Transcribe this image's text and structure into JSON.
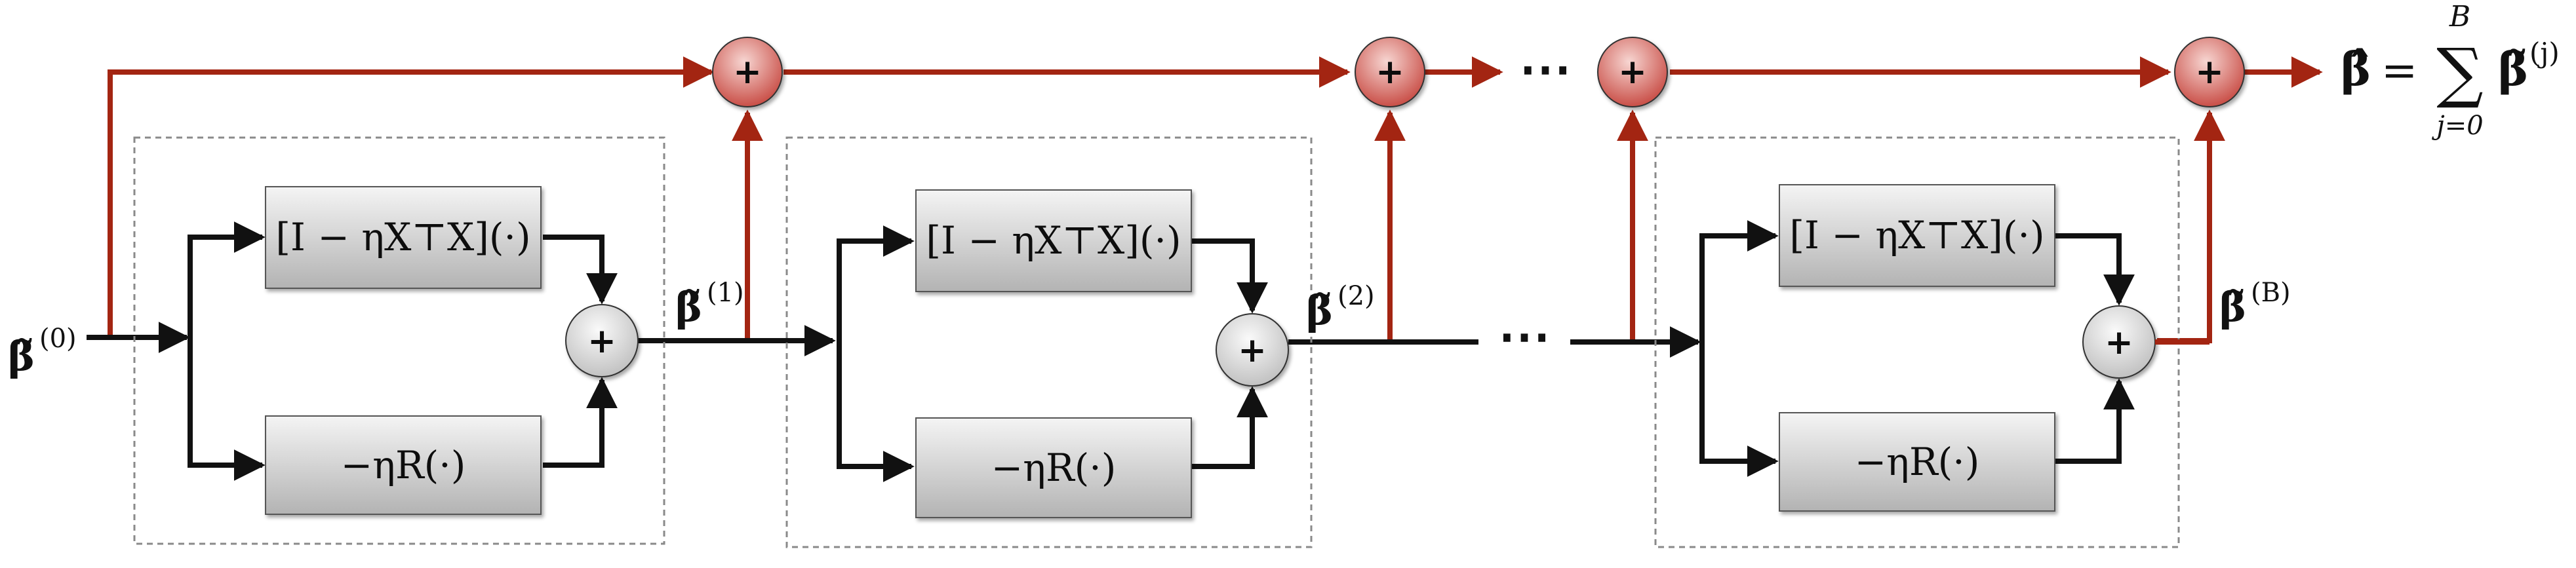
{
  "colors": {
    "signal": "#111111",
    "accumulator": "#a32512",
    "box_fill_top": "#f2f2f2",
    "box_fill_bottom": "#b5b5b5",
    "adder_fill": "#dcdcdc",
    "accumulator_adder_fill": "#c84a4a",
    "dashed_border": "#8a8a8a"
  },
  "input_label": {
    "base": "β̃",
    "superscript": "(0)"
  },
  "blocks": [
    {
      "top_box": "[I − ηX⊤X](·)",
      "bottom_box": "−ηR(·)",
      "adder_symbol": "+",
      "output_label": {
        "base": "β̃",
        "superscript": "(1)"
      }
    },
    {
      "top_box": "[I − ηX⊤X](·)",
      "bottom_box": "−ηR(·)",
      "adder_symbol": "+",
      "output_label": {
        "base": "β̃",
        "superscript": "(2)"
      }
    },
    {
      "top_box": "[I − ηX⊤X](·)",
      "bottom_box": "−ηR(·)",
      "adder_symbol": "+",
      "output_label": {
        "base": "β̃",
        "superscript": "(B)"
      }
    }
  ],
  "accumulator_adders": [
    "+",
    "+",
    "+",
    "+"
  ],
  "ellipsis": "⋯",
  "final_output": {
    "lhs": "β̂",
    "equals": "=",
    "sum_symbol": "∑",
    "sum_upper": "B",
    "sum_lower": "j=0",
    "term_base": "β̃",
    "term_superscript": "(j)"
  }
}
